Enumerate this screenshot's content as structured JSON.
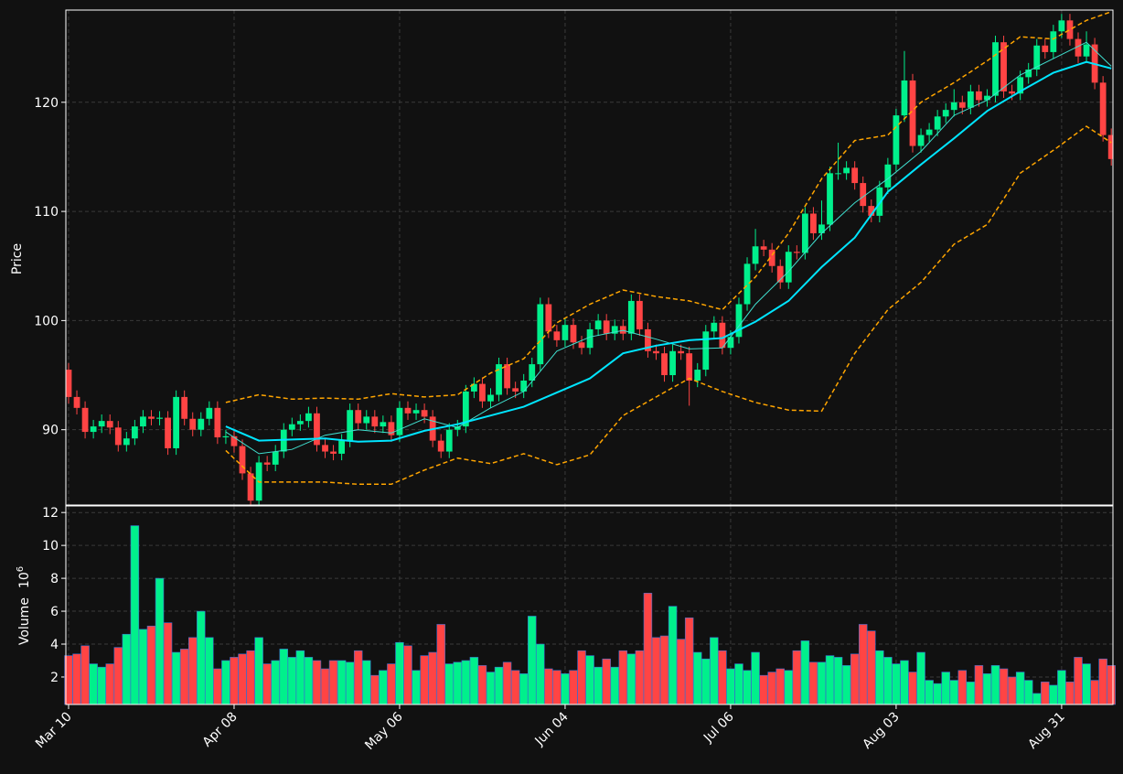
{
  "chart_data": {
    "type": "candlestick",
    "ylabel": "Price",
    "up_color": "#00f08c",
    "down_color": "#ff4444",
    "grid": true,
    "xlim": [
      -0.33,
      126.2
    ],
    "xticks": [
      {
        "value": 0,
        "label": "Mar 10"
      },
      {
        "value": 20,
        "label": "Apr 08"
      },
      {
        "value": 40,
        "label": "May 06"
      },
      {
        "value": 60,
        "label": "Jun 04"
      },
      {
        "value": 80,
        "label": "Jul 06"
      },
      {
        "value": 100,
        "label": "Aug 03"
      },
      {
        "value": 120,
        "label": "Aug 31"
      }
    ],
    "ylim": [
      83.1,
      128.45
    ],
    "yticks": [
      90,
      100,
      110,
      120
    ],
    "open": [
      95.5,
      93.0,
      92.0,
      89.8,
      90.3,
      90.8,
      90.2,
      88.6,
      89.2,
      90.3,
      91.2,
      91.0,
      91.1,
      88.3,
      93.0,
      91.0,
      90.0,
      91.0,
      92.0,
      89.3,
      89.4,
      88.5,
      86.0,
      83.5,
      87.0,
      86.8,
      88.0,
      90.0,
      90.5,
      90.8,
      91.5,
      88.6,
      88.0,
      87.8,
      89.0,
      91.8,
      90.6,
      91.2,
      90.3,
      90.7,
      89.5,
      92.0,
      91.5,
      91.8,
      91.2,
      89.0,
      88.0,
      90.0,
      90.3,
      93.5,
      94.2,
      92.6,
      93.2,
      96.0,
      93.8,
      93.5,
      94.5,
      96.0,
      101.5,
      99.0,
      98.2,
      99.6,
      98.0,
      97.5,
      99.2,
      100.0,
      98.8,
      99.5,
      98.8,
      101.8,
      99.2,
      97.2,
      97.0,
      95.0,
      97.2,
      97.0,
      94.5,
      95.5,
      99.0,
      99.8,
      97.5,
      98.5,
      101.5,
      105.2,
      106.8,
      106.5,
      105.0,
      103.5,
      106.3,
      106.2,
      109.8,
      108.0,
      108.8,
      113.5,
      113.5,
      114.0,
      112.6,
      110.5,
      109.6,
      112.2,
      114.3,
      118.8,
      122.0,
      116.0,
      117.0,
      117.5,
      118.7,
      119.3,
      120.0,
      119.5,
      121.0,
      120.2,
      120.6,
      125.5,
      121.0,
      120.8,
      122.3,
      123.0,
      125.2,
      124.6,
      126.5,
      127.5,
      125.8,
      124.2,
      125.3,
      121.8,
      117.0
    ],
    "high": [
      96.1,
      93.6,
      92.6,
      90.9,
      91.4,
      91.4,
      90.8,
      89.8,
      90.9,
      91.8,
      91.8,
      91.7,
      91.7,
      93.6,
      93.6,
      91.6,
      91.6,
      92.6,
      92.6,
      90.0,
      90.0,
      89.1,
      86.6,
      87.6,
      87.6,
      88.6,
      90.6,
      91.1,
      91.4,
      92.1,
      92.1,
      89.2,
      88.6,
      89.6,
      92.4,
      92.4,
      91.8,
      91.8,
      91.3,
      91.3,
      92.6,
      92.6,
      92.4,
      92.4,
      91.8,
      89.6,
      90.6,
      90.9,
      94.1,
      94.8,
      94.8,
      93.8,
      96.6,
      96.6,
      94.4,
      95.1,
      96.6,
      102.1,
      102.1,
      99.6,
      100.2,
      100.2,
      98.6,
      99.8,
      100.6,
      100.6,
      100.1,
      100.1,
      102.4,
      102.4,
      99.8,
      97.8,
      97.6,
      97.8,
      97.8,
      97.6,
      96.1,
      99.6,
      100.4,
      100.4,
      99.1,
      102.1,
      105.8,
      108.4,
      107.4,
      107.1,
      105.6,
      106.9,
      106.9,
      110.4,
      110.4,
      111.0,
      114.1,
      116.3,
      114.6,
      114.6,
      113.2,
      111.1,
      112.8,
      114.9,
      119.4,
      124.7,
      122.6,
      117.6,
      118.1,
      119.3,
      119.9,
      121.2,
      120.6,
      121.6,
      121.6,
      121.2,
      126.1,
      126.1,
      121.6,
      122.9,
      123.6,
      125.8,
      125.8,
      127.1,
      128.1,
      128.1,
      126.4,
      126.5,
      125.9,
      122.4,
      117.6
    ],
    "low": [
      92.4,
      91.4,
      89.2,
      89.2,
      89.7,
      89.6,
      88.0,
      88.0,
      88.6,
      89.7,
      90.4,
      90.4,
      87.7,
      87.7,
      90.4,
      89.4,
      89.4,
      90.4,
      88.7,
      88.7,
      87.9,
      85.4,
      82.9,
      82.9,
      86.2,
      86.2,
      87.4,
      89.4,
      89.9,
      90.2,
      88.0,
      87.4,
      87.2,
      87.2,
      88.4,
      90.0,
      90.0,
      89.7,
      89.7,
      88.9,
      88.9,
      90.9,
      90.9,
      90.6,
      88.4,
      87.4,
      87.4,
      89.4,
      89.7,
      92.9,
      92.0,
      92.0,
      92.6,
      93.2,
      92.9,
      92.9,
      93.9,
      95.4,
      98.4,
      97.6,
      97.6,
      97.4,
      96.9,
      96.9,
      98.6,
      98.2,
      98.2,
      98.2,
      98.2,
      98.6,
      96.6,
      96.4,
      94.4,
      94.4,
      96.4,
      92.2,
      93.9,
      94.9,
      98.4,
      96.9,
      96.9,
      97.9,
      100.9,
      104.6,
      105.9,
      104.4,
      102.9,
      102.9,
      105.6,
      105.6,
      107.4,
      107.4,
      108.2,
      112.9,
      112.9,
      112.0,
      109.9,
      109.0,
      109.0,
      111.6,
      113.7,
      118.2,
      115.4,
      115.4,
      116.4,
      116.9,
      118.1,
      118.7,
      118.9,
      118.9,
      119.6,
      119.6,
      120.0,
      120.4,
      120.2,
      120.2,
      121.7,
      122.4,
      124.0,
      124.0,
      125.9,
      125.2,
      123.6,
      123.6,
      121.2,
      116.4,
      114.2
    ],
    "close": [
      93.0,
      92.0,
      89.8,
      90.3,
      90.8,
      90.2,
      88.6,
      89.2,
      90.3,
      91.2,
      91.0,
      91.1,
      88.3,
      93.0,
      91.0,
      90.0,
      91.0,
      92.0,
      89.3,
      89.4,
      88.5,
      86.0,
      83.5,
      87.0,
      86.8,
      88.0,
      90.0,
      90.5,
      90.8,
      91.5,
      88.6,
      88.0,
      87.8,
      89.0,
      91.8,
      90.6,
      91.2,
      90.3,
      90.7,
      89.5,
      92.0,
      91.5,
      91.8,
      91.2,
      89.0,
      88.0,
      90.0,
      90.3,
      93.5,
      94.2,
      92.6,
      93.2,
      96.0,
      93.8,
      93.5,
      94.5,
      96.0,
      101.5,
      99.0,
      98.2,
      99.6,
      98.0,
      97.5,
      99.2,
      100.0,
      98.8,
      99.5,
      98.8,
      101.8,
      99.2,
      97.2,
      97.0,
      95.0,
      97.2,
      97.0,
      94.5,
      95.5,
      99.0,
      99.8,
      97.5,
      98.5,
      101.5,
      105.2,
      106.8,
      106.5,
      105.0,
      103.5,
      106.3,
      106.2,
      109.8,
      108.0,
      108.8,
      113.5,
      113.5,
      114.0,
      112.6,
      110.5,
      109.6,
      112.2,
      114.3,
      118.8,
      122.0,
      116.0,
      117.0,
      117.5,
      118.7,
      119.3,
      120.0,
      119.5,
      121.0,
      120.2,
      120.6,
      125.5,
      121.0,
      120.8,
      122.3,
      123.0,
      125.2,
      124.6,
      126.5,
      127.5,
      125.8,
      124.2,
      125.3,
      121.8,
      117.0,
      114.8
    ],
    "overlays": [
      {
        "color": "#ffa500",
        "width": 1.5,
        "dash": "5,3",
        "x": [
          19,
          23,
          27,
          31,
          35,
          39,
          43,
          47,
          51,
          55,
          59,
          63,
          67,
          71,
          75,
          79,
          83,
          87,
          91,
          95,
          99,
          103,
          107,
          111,
          115,
          119,
          123,
          126
        ],
        "values": [
          92.5,
          93.2,
          92.8,
          92.9,
          92.8,
          93.3,
          93.0,
          93.2,
          95.2,
          96.5,
          99.8,
          101.5,
          102.8,
          102.2,
          101.8,
          101.0,
          104.0,
          108.0,
          113.0,
          116.5,
          117.0,
          120.0,
          121.8,
          123.8,
          126.0,
          125.8,
          127.5,
          128.3
        ]
      },
      {
        "color": "#ffa500",
        "width": 1.5,
        "dash": "5,3",
        "x": [
          19,
          23,
          27,
          31,
          35,
          39,
          43,
          47,
          51,
          55,
          59,
          63,
          67,
          71,
          75,
          79,
          83,
          87,
          91,
          95,
          99,
          103,
          107,
          111,
          115,
          119,
          123,
          126
        ],
        "values": [
          88.1,
          85.2,
          85.2,
          85.2,
          85.0,
          85.0,
          86.3,
          87.4,
          86.9,
          87.8,
          86.8,
          87.7,
          91.3,
          93.0,
          94.7,
          93.5,
          92.5,
          91.8,
          91.7,
          97.0,
          101.0,
          103.5,
          107.0,
          108.8,
          113.5,
          115.6,
          117.8,
          116.3
        ]
      },
      {
        "color": "#40e0d0",
        "width": 1,
        "dash": "none",
        "x": [
          19,
          23,
          27,
          31,
          35,
          39,
          43,
          47,
          51,
          55,
          59,
          63,
          67,
          71,
          75,
          79,
          83,
          87,
          91,
          95,
          99,
          103,
          107,
          111,
          115,
          119,
          123,
          126
        ],
        "values": [
          89.8,
          87.8,
          88.2,
          89.5,
          90.0,
          89.7,
          91.0,
          90.2,
          92.0,
          93.5,
          97.2,
          98.5,
          99.1,
          98.3,
          97.4,
          97.5,
          101.5,
          104.5,
          108,
          110.8,
          113,
          115.5,
          118.8,
          120.2,
          122.5,
          124,
          125.5,
          123.3
        ]
      },
      {
        "color": "#00e5ff",
        "width": 2,
        "dash": "none",
        "x": [
          19,
          23,
          27,
          31,
          35,
          39,
          43,
          47,
          51,
          55,
          59,
          63,
          67,
          71,
          75,
          79,
          83,
          87,
          91,
          95,
          99,
          103,
          107,
          111,
          115,
          119,
          123,
          126
        ],
        "values": [
          90.3,
          89.0,
          89.1,
          89.2,
          88.9,
          89.0,
          89.9,
          90.5,
          91.3,
          92.1,
          93.4,
          94.7,
          97,
          97.7,
          98.2,
          98.4,
          99.9,
          101.8,
          104.9,
          107.6,
          111.8,
          114.3,
          116.7,
          119.2,
          121.0,
          122.7,
          123.7,
          123.1
        ]
      }
    ],
    "volume": {
      "label": "Volume",
      "multiplier": "10",
      "exponent": "6",
      "ylim": [
        0.33,
        12.4
      ],
      "yticks": [
        2,
        4,
        6,
        8,
        10,
        12
      ],
      "values": [
        3.3,
        3.4,
        3.9,
        2.8,
        2.6,
        2.8,
        3.8,
        4.6,
        11.2,
        4.9,
        5.1,
        8.0,
        5.3,
        3.5,
        3.7,
        4.4,
        6.0,
        4.4,
        2.5,
        3.0,
        3.2,
        3.4,
        3.6,
        4.4,
        2.8,
        3.0,
        3.7,
        3.2,
        3.6,
        3.2,
        3.0,
        2.5,
        3.0,
        3.0,
        2.9,
        3.6,
        3.0,
        2.1,
        2.4,
        2.8,
        4.1,
        3.9,
        2.4,
        3.3,
        3.5,
        5.2,
        2.8,
        2.9,
        3.0,
        3.2,
        2.7,
        2.3,
        2.6,
        2.9,
        2.4,
        2.2,
        5.7,
        4.0,
        2.5,
        2.4,
        2.2,
        2.4,
        3.6,
        3.3,
        2.6,
        3.1,
        2.6,
        3.6,
        3.4,
        3.6,
        7.1,
        4.4,
        4.5,
        6.3,
        4.3,
        5.6,
        3.5,
        3.1,
        4.4,
        3.6,
        2.5,
        2.8,
        2.4,
        3.5,
        2.1,
        2.3,
        2.5,
        2.4,
        3.6,
        4.2,
        2.9,
        2.9,
        3.3,
        3.2,
        2.7,
        3.4,
        5.2,
        4.8,
        3.6,
        3.2,
        2.8,
        3.0,
        2.3,
        3.5,
        1.8,
        1.6,
        2.3,
        1.8,
        2.4,
        1.7,
        2.7,
        2.2,
        2.7,
        2.5,
        2.0,
        2.3,
        1.8,
        1.0,
        1.7,
        1.5,
        2.4,
        1.7,
        3.2,
        2.8,
        1.8,
        3.1,
        2.7
      ]
    }
  }
}
